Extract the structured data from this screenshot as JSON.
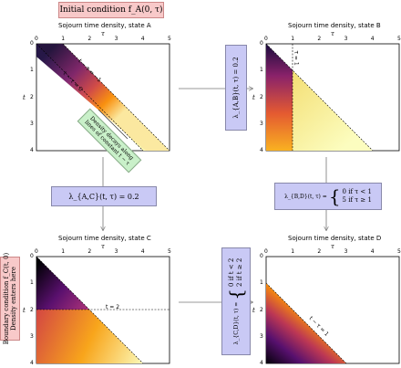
{
  "initial_condition": "Initial condition f_A(0, τ)",
  "boundary_condition": {
    "line1": "Boundary condition f_C(t, 0)",
    "line2": "Density enters here"
  },
  "density_note": {
    "line1": "Density decays along",
    "line2": "lines of constant t − τ"
  },
  "rates": {
    "AB": "λ_{A,B}(t, τ) = 0.2",
    "AC": "λ_{A,C}(t, τ) = 0.2",
    "BD": {
      "lhs": "λ_{B,D}(t, τ) =",
      "case1": "0 if τ < 1",
      "case2": "5 if τ ≥ 1"
    },
    "CD": {
      "lhs": "λ_{C,D}(t, τ) =",
      "case1": "0 if t < 2",
      "case2": "2 if t ≥ 2"
    }
  },
  "panels": {
    "A": {
      "title": "Sojourn time density, state A",
      "annotations": [
        "t − τ = −1",
        "t − τ = 0"
      ]
    },
    "B": {
      "title": "Sojourn time density, state B",
      "annotations": [
        "τ = 1"
      ]
    },
    "C": {
      "title": "Sojourn time density, state C",
      "annotations": [
        "t = 2"
      ]
    },
    "D": {
      "title": "Sojourn time density, state D",
      "annotations": [
        "t − τ = 1"
      ]
    }
  },
  "axes": {
    "x_label": "τ",
    "y_label": "t",
    "x_ticks": [
      "0",
      "1",
      "2",
      "3",
      "4",
      "5"
    ],
    "y_ticks": [
      "0",
      "1",
      "2",
      "3",
      "4"
    ],
    "x_range": [
      0,
      5
    ],
    "y_range": [
      0,
      4
    ]
  },
  "colors": {
    "colormap": "inferno",
    "arrow": "#777777"
  }
}
